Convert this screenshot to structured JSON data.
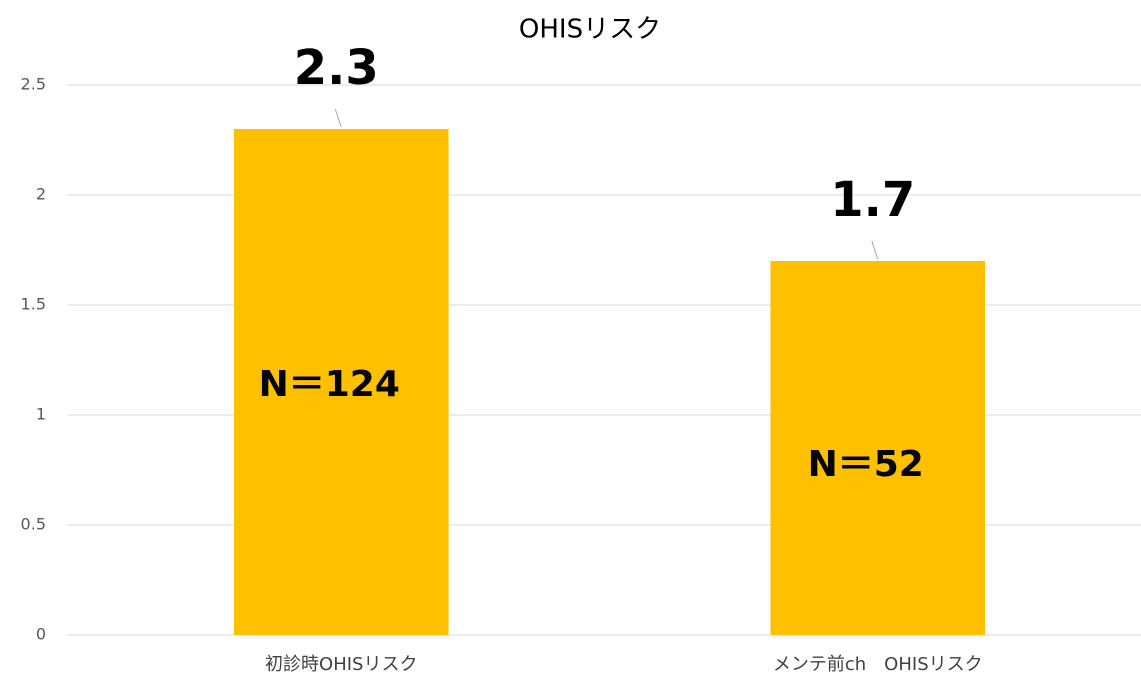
{
  "chart_data": {
    "type": "bar",
    "title": "OHISリスク",
    "categories": [
      "初診時OHISリスク",
      "メンテ前ch　OHISリスク"
    ],
    "values": [
      2.3,
      1.7
    ],
    "color": "#FFC000",
    "annotations": [
      "N＝124",
      "N＝52"
    ],
    "ylim": [
      0,
      2.5
    ],
    "yticks": [
      0,
      0.5,
      1,
      1.5,
      2,
      2.5
    ],
    "grid": true
  }
}
